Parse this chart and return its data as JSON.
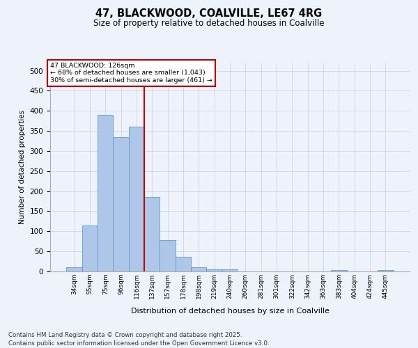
{
  "title1": "47, BLACKWOOD, COALVILLE, LE67 4RG",
  "title2": "Size of property relative to detached houses in Coalville",
  "xlabel": "Distribution of detached houses by size in Coalville",
  "ylabel": "Number of detached properties",
  "categories": [
    "34sqm",
    "55sqm",
    "75sqm",
    "96sqm",
    "116sqm",
    "137sqm",
    "157sqm",
    "178sqm",
    "198sqm",
    "219sqm",
    "240sqm",
    "260sqm",
    "281sqm",
    "301sqm",
    "322sqm",
    "342sqm",
    "363sqm",
    "383sqm",
    "404sqm",
    "424sqm",
    "445sqm"
  ],
  "values": [
    10,
    115,
    390,
    335,
    360,
    185,
    78,
    37,
    10,
    5,
    5,
    0,
    0,
    0,
    0,
    0,
    0,
    3,
    0,
    0,
    3
  ],
  "bar_color": "#aec6e8",
  "bar_edge_color": "#5b9bd5",
  "vline_x": 4.5,
  "vline_color": "#cc0000",
  "annotation_title": "47 BLACKWOOD: 126sqm",
  "annotation_line1": "← 68% of detached houses are smaller (1,043)",
  "annotation_line2": "30% of semi-detached houses are larger (461) →",
  "annotation_box_color": "#cc0000",
  "footnote1": "Contains HM Land Registry data © Crown copyright and database right 2025.",
  "footnote2": "Contains public sector information licensed under the Open Government Licence v3.0.",
  "bg_color": "#eef2fa",
  "ylim": [
    0,
    520
  ],
  "yticks": [
    0,
    50,
    100,
    150,
    200,
    250,
    300,
    350,
    400,
    450,
    500
  ]
}
